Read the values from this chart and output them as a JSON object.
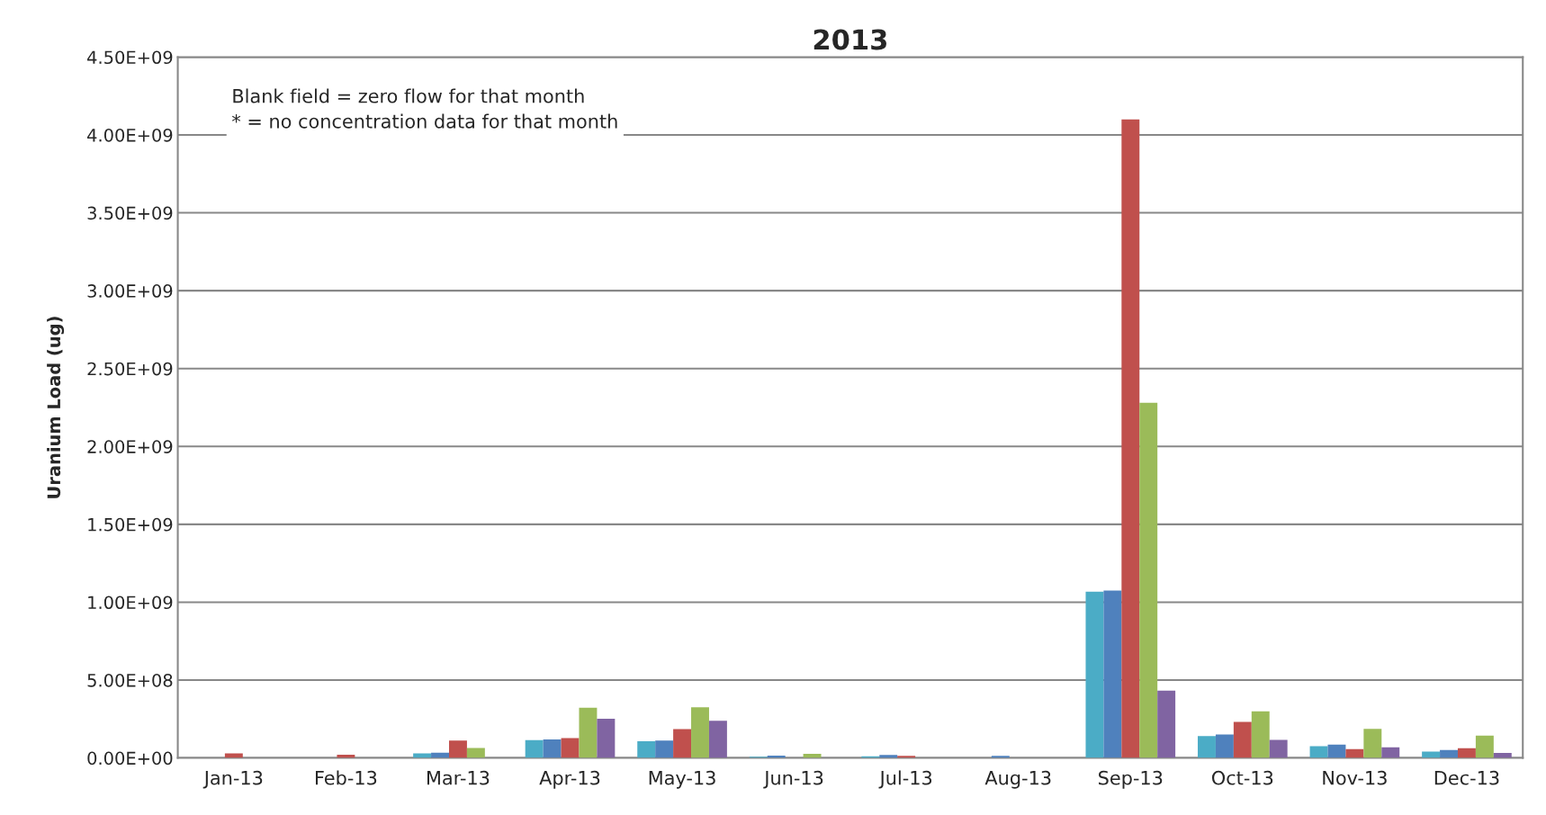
{
  "chart_data": {
    "type": "bar",
    "title": "2013",
    "ylabel": "Uranium Load (ug)",
    "categories": [
      "Jan-13",
      "Feb-13",
      "Mar-13",
      "Apr-13",
      "May-13",
      "Jun-13",
      "Jul-13",
      "Aug-13",
      "Sep-13",
      "Oct-13",
      "Nov-13",
      "Dec-13"
    ],
    "series": [
      {
        "color": "#4bacc6",
        "values": [
          0,
          1000000,
          30000000,
          114000000,
          107000000,
          8000000,
          11000000,
          null,
          1068000000,
          141000000,
          76000000,
          41000000
        ]
      },
      {
        "color": "#4f81bd",
        "values": [
          null,
          null,
          33000000,
          119000000,
          112000000,
          15000000,
          19000000,
          14000000,
          1074000000,
          151000000,
          86000000,
          51000000
        ]
      },
      {
        "color": "#c0504d",
        "values": [
          30000000,
          20000000,
          112000000,
          127000000,
          185000000,
          null,
          14000000,
          null,
          4100000000,
          232000000,
          57000000,
          62000000
        ]
      },
      {
        "color": "#9bbb59",
        "values": [
          0,
          0,
          64000000,
          323000000,
          325000000,
          27000000,
          0,
          0,
          2280000000,
          300000000,
          186000000,
          143000000
        ]
      },
      {
        "color": "#8064a2",
        "values": [
          0,
          0,
          0,
          251000000,
          239000000,
          0,
          0,
          0,
          432000000,
          116000000,
          68000000,
          32000000
        ]
      }
    ],
    "ylim": [
      0,
      4500000000
    ],
    "yticks": [
      {
        "value": 0,
        "label": "0.00E+00"
      },
      {
        "value": 500000000,
        "label": "5.00E+08"
      },
      {
        "value": 1000000000,
        "label": "1.00E+09"
      },
      {
        "value": 1500000000,
        "label": "1.50E+09"
      },
      {
        "value": 2000000000,
        "label": "2.00E+09"
      },
      {
        "value": 2500000000,
        "label": "2.50E+09"
      },
      {
        "value": 3000000000,
        "label": "3.00E+09"
      },
      {
        "value": 3500000000,
        "label": "3.50E+09"
      },
      {
        "value": 4000000000,
        "label": "4.00E+09"
      },
      {
        "value": 4500000000,
        "label": "4.50E+09"
      }
    ],
    "grid": "y",
    "legend": false,
    "annotations": [
      "Blank field = zero flow for that month\n* = no concentration data for that month"
    ]
  }
}
